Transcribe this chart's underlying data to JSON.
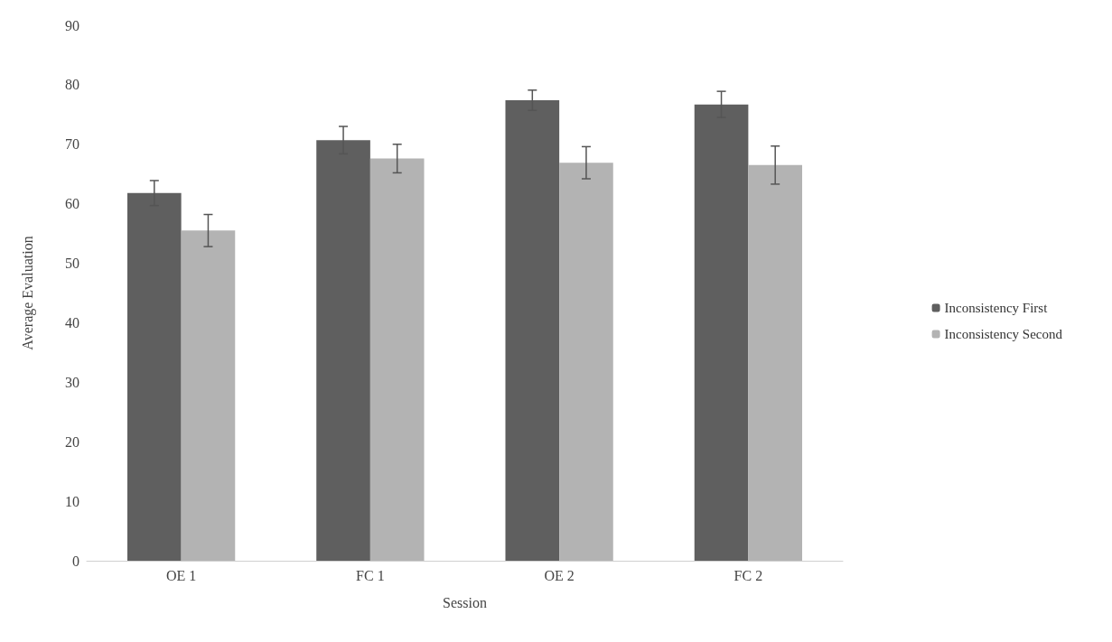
{
  "chart_data": {
    "type": "bar",
    "xlabel": "Session",
    "ylabel": "Average Evaluation",
    "categories": [
      "OE 1",
      "FC 1",
      "OE 2",
      "FC 2"
    ],
    "series": [
      {
        "name": "Inconsistency First",
        "color": "#5f5f5f",
        "values": [
          61.8,
          70.7,
          77.4,
          76.7
        ],
        "errors": [
          2.1,
          2.3,
          1.7,
          2.2
        ]
      },
      {
        "name": "Inconsistency Second",
        "color": "#b3b3b3",
        "values": [
          55.5,
          67.6,
          66.9,
          66.5
        ],
        "errors": [
          2.7,
          2.4,
          2.7,
          3.2
        ]
      }
    ],
    "ylim": [
      0,
      90
    ],
    "yticks": [
      0,
      10,
      20,
      30,
      40,
      50,
      60,
      70,
      80,
      90
    ],
    "grid": false,
    "legend": "right"
  }
}
